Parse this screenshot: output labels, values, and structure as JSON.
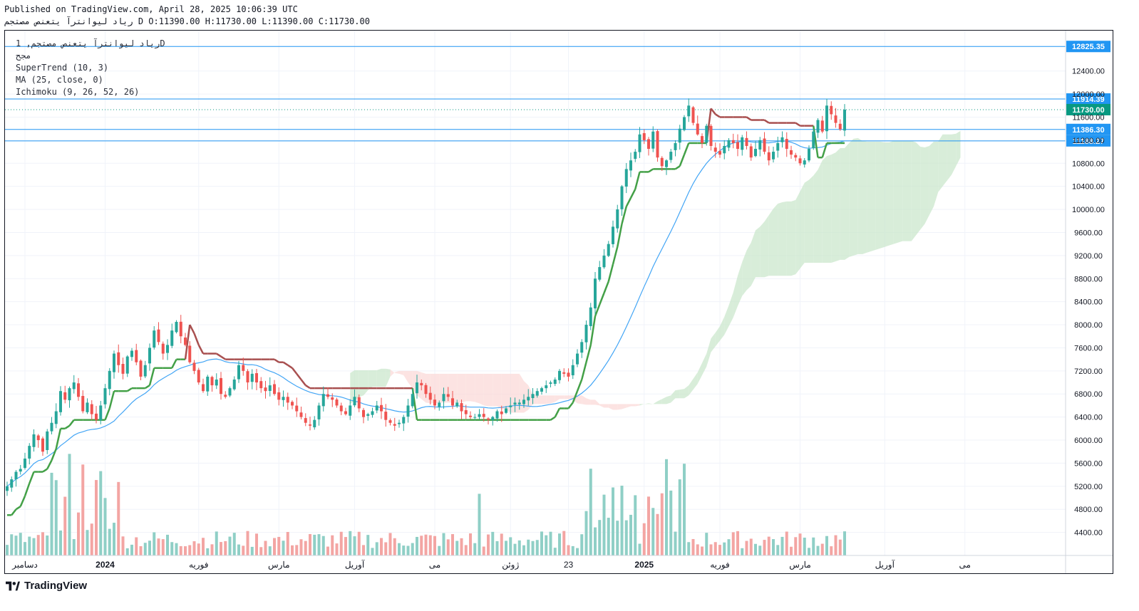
{
  "header": {
    "published": "Published on TradingView.com, April 28, 2025 10:06:39 UTC",
    "symbol_line": "ریاد لیوانترآ یتعنص مصتجم D O:11390.00 H:11730.00 L:11390.00 C:11730.00"
  },
  "legend": {
    "line1": "ریاد لیوانترآ یتعنص مصتجم, 1D",
    "line2": "مجح",
    "supertrend": "SuperTrend (10, 3)",
    "ma": "MA (25, close, 0)",
    "ichimoku": "Ichimoku (9, 26, 52, 26)"
  },
  "footer": {
    "brand": "TradingView"
  },
  "colors": {
    "up": "#26a69a",
    "down": "#ef5350",
    "up_vol": "#8fcfc6",
    "down_vol": "#f3a5a3",
    "supertrend_up": "#43a047",
    "supertrend_down": "#a84f4f",
    "ma": "#42a5f5",
    "cloud_green": "#c8e6c9",
    "cloud_red": "#fbd7d6",
    "hline": "#2196f3",
    "last_price": "#089981"
  },
  "chart_data": {
    "type": "candlestick",
    "ylim": [
      4000,
      13100
    ],
    "y_ticks": [
      4400,
      4800,
      5200,
      5600,
      6000,
      6400,
      6800,
      7200,
      7600,
      8000,
      8400,
      8800,
      9200,
      9600,
      10000,
      10400,
      10800,
      11200,
      11600,
      12000,
      12400
    ],
    "x_labels": [
      "دسامبر",
      "2024",
      "فوریه",
      "مارس",
      "آوریل",
      "می",
      "ژوئن",
      "23",
      "2025",
      "فوریه",
      "مارس",
      "آوریل",
      "می"
    ],
    "x_label_index": [
      4,
      22,
      43,
      61,
      78,
      96,
      113,
      126,
      143,
      160,
      178,
      197,
      215
    ],
    "horizontal_levels": [
      12825.35,
      11914.39,
      11386.3,
      11188.27
    ],
    "last_price": 11730.0,
    "ohlc_last": {
      "open": 11390.0,
      "high": 11730.0,
      "low": 11390.0,
      "close": 11730.0
    },
    "closes": [
      5200,
      5320,
      5450,
      5500,
      5680,
      5900,
      6100,
      6000,
      5800,
      6150,
      6300,
      6500,
      6850,
      6700,
      6900,
      7000,
      6750,
      6500,
      6650,
      6450,
      6350,
      6600,
      6900,
      7200,
      7500,
      7300,
      7150,
      7450,
      7550,
      7350,
      7100,
      7300,
      7600,
      7900,
      7700,
      7500,
      7650,
      7900,
      8050,
      7800,
      7650,
      7350,
      7200,
      7000,
      6850,
      7100,
      6950,
      7050,
      6800,
      6750,
      6900,
      7050,
      7300,
      7200,
      7000,
      7150,
      7000,
      6900,
      6850,
      6950,
      6800,
      6700,
      6750,
      6650,
      6600,
      6500,
      6400,
      6300,
      6250,
      6350,
      6600,
      6800,
      6750,
      6700,
      6600,
      6500,
      6450,
      6600,
      6750,
      6550,
      6400,
      6450,
      6500,
      6600,
      6500,
      6350,
      6300,
      6250,
      6300,
      6400,
      6600,
      6800,
      7000,
      6950,
      6800,
      6700,
      6600,
      6650,
      6800,
      6750,
      6600,
      6650,
      6500,
      6450,
      6400,
      6400,
      6450,
      6400,
      6350,
      6400,
      6500,
      6450,
      6550,
      6600,
      6650,
      6650,
      6700,
      6750,
      6800,
      6850,
      6900,
      6950,
      7000,
      7050,
      7200,
      7150,
      7100,
      7300,
      7500,
      7700,
      8000,
      8300,
      8800,
      9000,
      9200,
      9400,
      9700,
      10000,
      10400,
      10700,
      10850,
      11000,
      11300,
      11200,
      11050,
      11350,
      10900,
      10750,
      10850,
      11000,
      11150,
      11400,
      11600,
      11800,
      11500,
      11300,
      11150,
      11450,
      11100,
      11000,
      10950,
      11100,
      11200,
      11150,
      11050,
      11250,
      11100,
      10900,
      11050,
      11200,
      11000,
      10850,
      11000,
      11150,
      11250,
      11050,
      10950,
      10900,
      10800,
      10850,
      11050,
      11350,
      11550,
      11350,
      11800,
      11650,
      11500,
      11390,
      11730
    ]
  }
}
